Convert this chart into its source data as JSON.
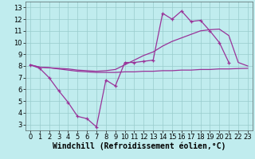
{
  "background_color": "#c0ecee",
  "line_color": "#993399",
  "grid_color": "#99cccc",
  "xlabel": "Windchill (Refroidissement éolien,°C)",
  "xlabel_fontsize": 7,
  "xlim": [
    -0.5,
    23.5
  ],
  "ylim": [
    2.5,
    13.5
  ],
  "xticks": [
    0,
    1,
    2,
    3,
    4,
    5,
    6,
    7,
    8,
    9,
    10,
    11,
    12,
    13,
    14,
    15,
    16,
    17,
    18,
    19,
    20,
    21,
    22,
    23
  ],
  "yticks": [
    3,
    4,
    5,
    6,
    7,
    8,
    9,
    10,
    11,
    12,
    13
  ],
  "tick_fontsize": 6,
  "line1_x": [
    0,
    1,
    2,
    3,
    4,
    5,
    6,
    7,
    8,
    9,
    10,
    11,
    12,
    13,
    14,
    15,
    16,
    17,
    18,
    19,
    20,
    21
  ],
  "line1_y": [
    8.1,
    7.8,
    7.0,
    5.9,
    4.9,
    3.7,
    3.5,
    2.8,
    6.8,
    6.3,
    8.3,
    8.3,
    8.4,
    8.5,
    12.5,
    12.0,
    12.7,
    11.8,
    11.9,
    11.0,
    10.0,
    8.3
  ],
  "line2_x": [
    0,
    1,
    2,
    3,
    4,
    5,
    6,
    7,
    8,
    9,
    10,
    11,
    12,
    13,
    14,
    15,
    16,
    17,
    18,
    19,
    20,
    21,
    22,
    23
  ],
  "line2_y": [
    8.1,
    7.9,
    7.85,
    7.8,
    7.75,
    7.65,
    7.6,
    7.55,
    7.6,
    7.7,
    8.1,
    8.5,
    8.9,
    9.2,
    9.7,
    10.1,
    10.4,
    10.7,
    11.0,
    11.1,
    11.15,
    10.6,
    8.3,
    8.0
  ],
  "line3_x": [
    0,
    1,
    2,
    3,
    4,
    5,
    6,
    7,
    8,
    9,
    10,
    11,
    12,
    13,
    14,
    15,
    16,
    17,
    18,
    19,
    20,
    21,
    22,
    23
  ],
  "line3_y": [
    8.1,
    7.9,
    7.85,
    7.75,
    7.65,
    7.55,
    7.5,
    7.45,
    7.45,
    7.45,
    7.5,
    7.5,
    7.55,
    7.55,
    7.6,
    7.6,
    7.65,
    7.65,
    7.7,
    7.7,
    7.75,
    7.75,
    7.78,
    7.8
  ]
}
